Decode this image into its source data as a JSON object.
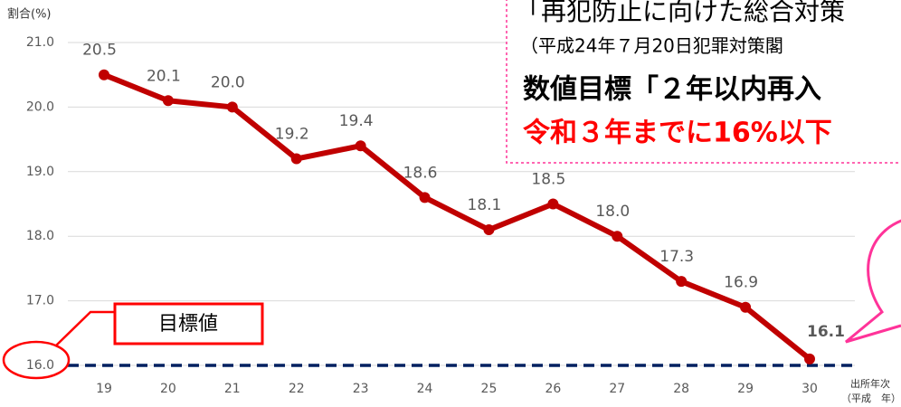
{
  "chart_data": {
    "type": "line",
    "y_label": "割合(%)",
    "x_label": "出所年次",
    "x_label_sub": "（平成　年）",
    "categories": [
      "19",
      "20",
      "21",
      "22",
      "23",
      "24",
      "25",
      "26",
      "27",
      "28",
      "29",
      "30"
    ],
    "series": [
      {
        "color": "#c00000",
        "values": [
          20.5,
          20.1,
          20.0,
          19.2,
          19.4,
          18.6,
          18.1,
          18.5,
          18.0,
          17.3,
          16.9,
          16.1
        ],
        "value_labels": [
          "20.5",
          "20.1",
          "20.0",
          "19.2",
          "19.4",
          "18.6",
          "18.1",
          "18.5",
          "18.0",
          "17.3",
          "16.9",
          "16.1"
        ]
      }
    ],
    "ylim": [
      16.0,
      21.0
    ],
    "yticks": [
      {
        "value": 16,
        "label": "16.0"
      },
      {
        "value": 17,
        "label": "17.0"
      },
      {
        "value": 18,
        "label": "18.0"
      },
      {
        "value": 19,
        "label": "19.0"
      },
      {
        "value": 20,
        "label": "20.0"
      },
      {
        "value": 21,
        "label": "21.0"
      }
    ],
    "grid": true,
    "target": {
      "value": 16,
      "label": "目標値",
      "color": "#002060"
    },
    "annotation": {
      "lines": [
        "「再犯防止に向けた総合対策",
        "（平成24年７月20日犯罪対策閣",
        "数値目標「２年以内再入",
        "令和３年までに16%以下"
      ]
    }
  }
}
